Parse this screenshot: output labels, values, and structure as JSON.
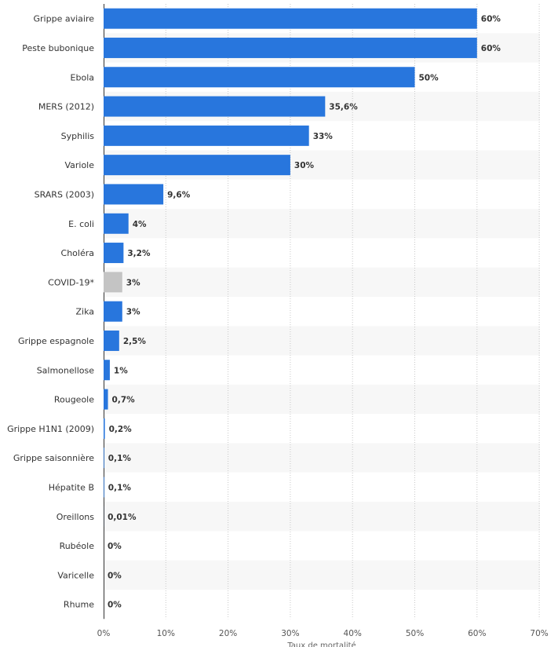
{
  "chart_data": {
    "type": "bar",
    "orientation": "horizontal",
    "title": "",
    "xlabel": "Taux de mortalité",
    "ylabel": "",
    "xlim": [
      0,
      70
    ],
    "x_ticks": [
      0,
      10,
      20,
      30,
      40,
      50,
      60,
      70
    ],
    "x_tick_labels": [
      "0%",
      "10%",
      "20%",
      "30%",
      "40%",
      "50%",
      "60%",
      "70%"
    ],
    "grid": true,
    "categories": [
      "Grippe aviaire",
      "Peste bubonique",
      "Ebola",
      "MERS (2012)",
      "Syphilis",
      "Variole",
      "SRARS (2003)",
      "E. coli",
      "Choléra",
      "COVID-19*",
      "Zika",
      "Grippe espagnole",
      "Salmonellose",
      "Rougeole",
      "Grippe H1N1 (2009)",
      "Grippe saisonnière",
      "Hépatite B",
      "Oreillons",
      "Rubéole",
      "Varicelle",
      "Rhume"
    ],
    "values": [
      60,
      60,
      50,
      35.6,
      33,
      30,
      9.6,
      4,
      3.2,
      3,
      3,
      2.5,
      1,
      0.7,
      0.2,
      0.1,
      0.1,
      0.01,
      0,
      0,
      0
    ],
    "value_labels": [
      "60%",
      "60%",
      "50%",
      "35,6%",
      "33%",
      "30%",
      "9,6%",
      "4%",
      "3,2%",
      "3%",
      "3%",
      "2,5%",
      "1%",
      "0,7%",
      "0,2%",
      "0,1%",
      "0,1%",
      "0,01%",
      "0%",
      "0%",
      "0%"
    ],
    "highlight_index": 9,
    "colors": {
      "bar": "#2876dd",
      "highlight": "#c4c4c4",
      "band_even": "#ffffff",
      "band_odd": "#f7f7f7",
      "grid": "#c8c8c8",
      "baseline": "#333333"
    }
  }
}
